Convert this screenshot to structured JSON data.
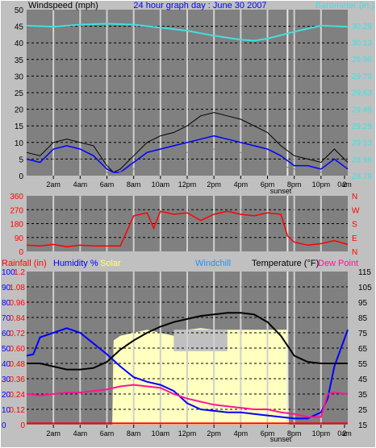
{
  "chart_data": [
    {
      "type": "line",
      "panel": "wind",
      "title": "24 hour graph day : June 30 2007",
      "ylabel": "Windspeed (mph)",
      "y2label": "Barometer (in.)",
      "ylim": [
        0,
        50
      ],
      "y2lim": [
        28.79,
        30.45
      ],
      "y_ticks": [
        "0",
        "5",
        "10",
        "15",
        "20",
        "25",
        "30",
        "35",
        "40",
        "45",
        "50"
      ],
      "y2_ticks": [
        "28.79",
        "28.96",
        "29.13",
        "29.29",
        "29.46",
        "29.63",
        "29.79",
        "29.96",
        "30.13",
        "30.29"
      ],
      "x_ticks": [
        "2am",
        "4am",
        "6am",
        "8am",
        "10am",
        "12pm",
        "2pm",
        "4pm",
        "6pm",
        "8pm",
        "10pm",
        "0am",
        "2"
      ],
      "sunset_label": "sunset",
      "grid": true,
      "colors": {
        "gust": "#000000",
        "speed": "#0000ff",
        "avg": "#808080",
        "barometer": "#40e0e0"
      },
      "series": [
        {
          "name": "gust",
          "x": [
            0,
            1,
            2,
            3,
            4,
            5,
            6,
            6.5,
            7,
            8,
            9,
            10,
            11,
            12,
            13,
            14,
            15,
            16,
            17,
            18,
            19,
            20,
            21,
            22,
            23,
            24
          ],
          "values": [
            7,
            6,
            10,
            11,
            10,
            9,
            3,
            1,
            2,
            6,
            10,
            12,
            13,
            15,
            18,
            19,
            18,
            17,
            15,
            13,
            9,
            6,
            5,
            4,
            8,
            4
          ]
        },
        {
          "name": "speed",
          "x": [
            0,
            1,
            2,
            3,
            4,
            5,
            6,
            6.5,
            7,
            8,
            9,
            10,
            11,
            12,
            13,
            14,
            15,
            16,
            17,
            18,
            19,
            20,
            21,
            22,
            23,
            24
          ],
          "values": [
            5,
            4,
            8,
            9,
            8,
            6,
            2,
            1,
            1,
            4,
            7,
            8,
            9,
            10,
            11,
            12,
            11,
            10,
            9,
            8,
            6,
            3,
            3,
            2,
            5,
            2
          ]
        },
        {
          "name": "avg",
          "x": [
            0,
            1,
            2,
            3,
            4,
            5,
            6,
            6.5,
            7,
            8,
            9,
            10,
            11,
            12,
            13,
            14,
            15,
            16,
            17,
            18,
            19,
            20,
            21,
            22,
            23,
            24
          ],
          "values": [
            3,
            2,
            5,
            6,
            5,
            3,
            1,
            0,
            1,
            2,
            4,
            5,
            6,
            7,
            8,
            8,
            7,
            7,
            6,
            5,
            3,
            2,
            1,
            1,
            3,
            1
          ]
        },
        {
          "name": "barometer",
          "x": [
            0,
            2,
            4,
            6,
            8,
            10,
            12,
            14,
            16,
            17,
            18,
            20,
            22,
            24
          ],
          "values": [
            30.29,
            30.28,
            30.3,
            30.31,
            30.3,
            30.27,
            30.24,
            30.19,
            30.15,
            30.14,
            30.16,
            30.23,
            30.29,
            30.28
          ]
        }
      ]
    },
    {
      "type": "line",
      "panel": "direction",
      "ylim": [
        0,
        360
      ],
      "y_ticks": [
        "0",
        "90",
        "180",
        "270",
        "360"
      ],
      "y2_ticks": [
        "N",
        "E",
        "S",
        "W",
        "N"
      ],
      "x_ticks": [
        "2am",
        "4am",
        "6am",
        "8am",
        "10am",
        "12pm",
        "2pm",
        "4pm",
        "6pm",
        "8pm",
        "10pm",
        "0am",
        "2"
      ],
      "sunset_label": "sunset",
      "colors": {
        "direction": "#ff0000"
      },
      "series": [
        {
          "name": "direction",
          "x": [
            0,
            1,
            2,
            3,
            4,
            5,
            6,
            7,
            8,
            9,
            9.5,
            10,
            11,
            12,
            13,
            14,
            15,
            16,
            17,
            18,
            19,
            19.5,
            20,
            21,
            22,
            23,
            24
          ],
          "values": [
            40,
            35,
            45,
            30,
            40,
            35,
            35,
            35,
            230,
            250,
            150,
            260,
            240,
            250,
            200,
            240,
            260,
            240,
            230,
            250,
            240,
            100,
            60,
            40,
            50,
            70,
            45
          ]
        }
      ]
    },
    {
      "type": "line",
      "panel": "temperature",
      "legend": [
        "Rainfall (in)",
        "Humidity %",
        "Solar",
        "Windchill",
        "Temperature (°F)",
        "Dew Point"
      ],
      "ylim_humidity": [
        0,
        100
      ],
      "ylim_temp": [
        15,
        115
      ],
      "ylim_rain": [
        0,
        1.2
      ],
      "y_ticks_humidity": [
        "0",
        "10",
        "20",
        "30",
        "40",
        "50",
        "60",
        "70",
        "80",
        "90",
        "100"
      ],
      "y_ticks_rain": [
        "0",
        "0.12",
        "0.24",
        "0.36",
        "0.48",
        "0.60",
        "0.72",
        "0.84",
        "0.96",
        "1.08",
        "1.2"
      ],
      "y_ticks_temp": [
        "15",
        "25",
        "35",
        "45",
        "55",
        "65",
        "75",
        "85",
        "95",
        "105",
        "115"
      ],
      "x_ticks": [
        "2am",
        "4am",
        "6am",
        "8am",
        "10am",
        "12pm",
        "2pm",
        "4pm",
        "6pm",
        "8pm",
        "10pm",
        "0am",
        "2"
      ],
      "sunset_label": "sunset",
      "colors": {
        "humidity": "#0000ff",
        "temperature": "#000000",
        "dewpoint": "#ff1493",
        "solar": "#ffffc0",
        "rain": "#ff0000",
        "windchill": "#1e90ff",
        "solar_shadow": "#c0c0c0"
      },
      "series": [
        {
          "name": "humidity",
          "x": [
            0,
            0.5,
            1,
            2,
            3,
            4,
            5,
            6,
            7,
            8,
            9,
            10,
            11,
            12,
            13,
            14,
            15,
            16,
            17,
            18,
            19,
            20,
            21,
            22,
            22.5,
            23,
            24
          ],
          "values": [
            45,
            46,
            57,
            60,
            63,
            60,
            53,
            46,
            38,
            31,
            28,
            26,
            22,
            14,
            10,
            9,
            8,
            8,
            7,
            6,
            5,
            4,
            4,
            8,
            17,
            38,
            62
          ]
        },
        {
          "name": "temperature",
          "x": [
            0,
            1,
            2,
            3,
            4,
            5,
            6,
            7,
            8,
            9,
            10,
            11,
            12,
            13,
            14,
            15,
            16,
            17,
            18,
            19,
            20,
            21,
            22,
            23,
            24
          ],
          "values": [
            55,
            55,
            53,
            51,
            51,
            52,
            56,
            64,
            70,
            75,
            79,
            82,
            84,
            86,
            87,
            88,
            88,
            87,
            82,
            73,
            60,
            56,
            55,
            55,
            55
          ]
        },
        {
          "name": "dewpoint",
          "x": [
            0,
            1,
            2,
            3,
            4,
            5,
            6,
            7,
            8,
            9,
            10,
            11,
            12,
            13,
            14,
            15,
            16,
            17,
            18,
            19,
            20,
            21,
            22,
            22.5,
            23,
            24
          ],
          "values": [
            35,
            34,
            35,
            36,
            36,
            37,
            38,
            40,
            41,
            40,
            39,
            35,
            32,
            30,
            28,
            27,
            26,
            25,
            25,
            23,
            22,
            20,
            20,
            35,
            36,
            35
          ]
        },
        {
          "name": "solar",
          "x": [
            6.4,
            6.5,
            7,
            8,
            9,
            10,
            11,
            12,
            13,
            14,
            15,
            16,
            17,
            18,
            19,
            19.5,
            19.6
          ],
          "values": [
            0,
            55,
            58,
            60,
            62,
            60,
            58,
            62,
            63,
            62,
            62,
            62,
            62,
            62,
            62,
            62,
            0
          ]
        },
        {
          "name": "rain",
          "x": [
            0,
            24
          ],
          "values": [
            0.01,
            0.01
          ]
        }
      ]
    }
  ]
}
